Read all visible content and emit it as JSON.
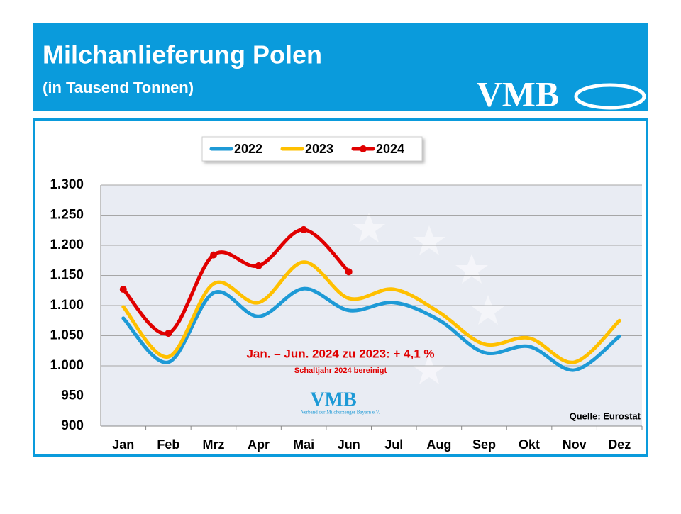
{
  "chart_data": {
    "type": "line",
    "title": "Milchanlieferung Polen",
    "subtitle": "(in Tausend Tonnen)",
    "logo": "VMB",
    "annotations": [
      "Jan. – Jun. 2024 zu 2023: + 4,1 %",
      "Schaltjahr 2024 bereinigt",
      "VMB",
      "Verband der Milcherzeuger Bayern e.V.",
      "Quelle: Eurostat"
    ],
    "categories": [
      "Jan",
      "Feb",
      "Mrz",
      "Apr",
      "Mai",
      "Jun",
      "Jul",
      "Aug",
      "Sep",
      "Okt",
      "Nov",
      "Dez"
    ],
    "series": [
      {
        "name": "2022",
        "color": "#1e9ad6",
        "values": [
          1079,
          1006,
          1121,
          1082,
          1128,
          1092,
          1105,
          1076,
          1022,
          1032,
          993,
          1049
        ]
      },
      {
        "name": "2023",
        "color": "#ffc000",
        "values": [
          1098,
          1015,
          1136,
          1105,
          1172,
          1112,
          1127,
          1089,
          1036,
          1046,
          1006,
          1075
        ]
      },
      {
        "name": "2024",
        "color": "#e00000",
        "values": [
          1127,
          1054,
          1184,
          1166,
          1226,
          1156,
          null,
          null,
          null,
          null,
          null,
          null
        ],
        "markers": true
      }
    ],
    "ylim": [
      900,
      1300
    ],
    "yticks": [
      900,
      950,
      {
        "value": 1000,
        "label": "1.000"
      },
      {
        "value": 1050,
        "label": "1.050"
      },
      {
        "value": 1100,
        "label": "1.100"
      },
      {
        "value": 1150,
        "label": "1.150"
      },
      {
        "value": 1200,
        "label": "1.200"
      },
      {
        "value": 1250,
        "label": "1.250"
      },
      {
        "value": 1300,
        "label": "1.300"
      }
    ],
    "grid": true,
    "legend": "top"
  }
}
